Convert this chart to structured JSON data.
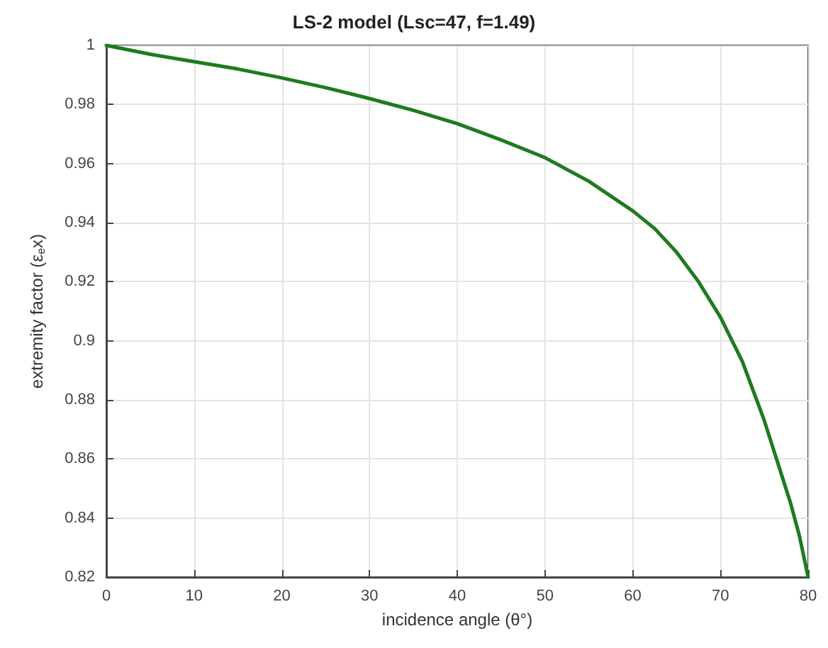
{
  "chart_data": {
    "type": "line",
    "title": "LS-2 model (Lsc=47, f=1.49)",
    "xlabel": "incidence angle (θ°)",
    "ylabel": "extremity factor (ε$_{e}$x)",
    "x": [
      0,
      5,
      10,
      15,
      20,
      25,
      30,
      35,
      40,
      45,
      50,
      55,
      60,
      62.5,
      65,
      67.5,
      70,
      72.5,
      75,
      76.5,
      78,
      79,
      80
    ],
    "series": [
      {
        "color": "#1f7a1f",
        "values": [
          1,
          0.997,
          0.9945,
          0.992,
          0.989,
          0.9857,
          0.982,
          0.978,
          0.9735,
          0.968,
          0.962,
          0.954,
          0.944,
          0.938,
          0.93,
          0.92,
          0.908,
          0.893,
          0.873,
          0.859,
          0.845,
          0.834,
          0.82
        ]
      }
    ],
    "xlim": [
      0,
      80
    ],
    "xticks": [
      0,
      10,
      20,
      30,
      40,
      50,
      60,
      70,
      80
    ],
    "ylim": [
      0.82,
      1
    ],
    "yticks": [
      0.82,
      0.84,
      0.86,
      0.88,
      0.9,
      0.92,
      0.94,
      0.96,
      0.98,
      1
    ],
    "grid": true,
    "marker": "none",
    "line_style": "solid"
  }
}
